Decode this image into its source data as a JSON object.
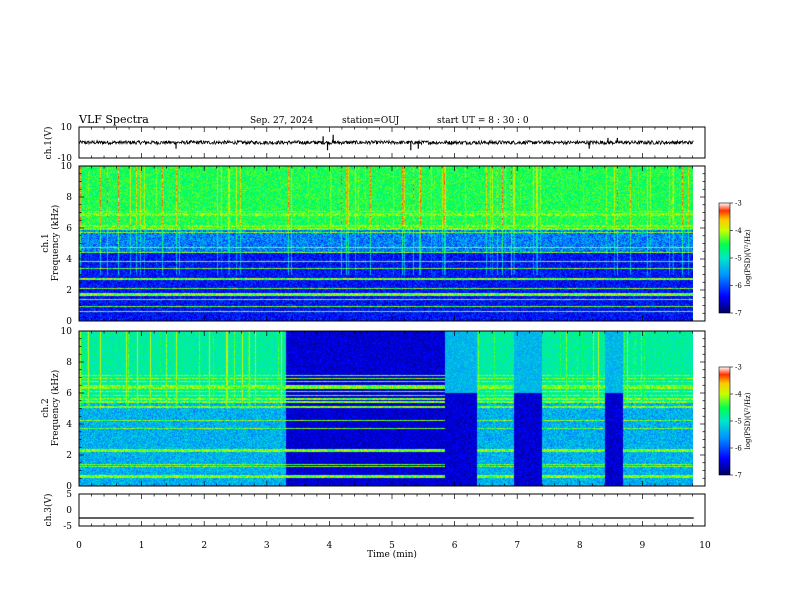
{
  "header": {
    "title": "VLF Spectra",
    "date": "Sep. 27, 2024",
    "station": "station=OUJ",
    "start": "start  UT =   8  : 30 : 0"
  },
  "colors": {
    "spectrogram_scale": [
      "#00008c",
      "#0000ff",
      "#0096ff",
      "#00e6e6",
      "#00ff64",
      "#c8ff00",
      "#ffdc00",
      "#ff5000",
      "#dc0000"
    ],
    "trace": "#000000"
  },
  "chart_data": [
    {
      "id": "ch1-waveform",
      "type": "line",
      "ylabel": "ch.1(V)",
      "ylim": [
        -10,
        10
      ],
      "yticks": [
        "10",
        "-10"
      ],
      "baseline": 0,
      "noise_amplitude": 1.2,
      "spikes": [
        {
          "t": 1.55,
          "v": -4
        },
        {
          "t": 3.9,
          "v": 4
        },
        {
          "t": 3.97,
          "v": -5
        },
        {
          "t": 4.06,
          "v": 5
        },
        {
          "t": 5.3,
          "v": -5
        },
        {
          "t": 5.42,
          "v": -4
        },
        {
          "t": 8.15,
          "v": -4
        },
        {
          "t": 8.45,
          "v": 3
        },
        {
          "t": 8.6,
          "v": 3
        }
      ],
      "data_end_min": 9.82
    },
    {
      "id": "ch1-spectrogram",
      "type": "heatmap",
      "ylabel": "ch.1\nFrequency  (kHz)",
      "ylim": [
        0,
        10
      ],
      "yticks": [
        "0",
        "2",
        "4",
        "6",
        "8",
        "10"
      ],
      "colorbar": {
        "label": "log(PSD)(V²/Hz)",
        "range": [
          -7,
          -3
        ],
        "ticks": [
          "-3",
          "-4",
          "-5",
          "-6",
          "-7"
        ]
      },
      "data_end_min": 9.82,
      "note_segments": []
    },
    {
      "id": "ch2-spectrogram",
      "type": "heatmap",
      "ylabel": "ch.2\nFrequency  (kHz)",
      "ylim": [
        0,
        10
      ],
      "yticks": [
        "0",
        "2",
        "4",
        "6",
        "8",
        "10"
      ],
      "colorbar": {
        "label": "log(PSD)(V²/Hz)",
        "range": [
          -7,
          -3
        ],
        "ticks": [
          "-3",
          "-4",
          "-5",
          "-6",
          "-7"
        ]
      },
      "data_end_min": 9.82,
      "quiet_intervals_min": [
        [
          3.3,
          5.85
        ],
        [
          5.85,
          6.35
        ],
        [
          6.95,
          7.4
        ],
        [
          8.4,
          8.7
        ]
      ]
    },
    {
      "id": "ch3-waveform",
      "type": "line",
      "ylabel": "ch.3(V)",
      "ylim": [
        -5,
        5
      ],
      "yticks": [
        "5",
        "0",
        "-5"
      ],
      "constant_value": -2.5,
      "data_end_min": 9.82
    }
  ],
  "xaxis": {
    "label": "Time  (min)",
    "xlim": [
      0,
      10
    ],
    "ticks": [
      "0",
      "1",
      "2",
      "3",
      "4",
      "5",
      "6",
      "7",
      "8",
      "9",
      "10"
    ]
  }
}
